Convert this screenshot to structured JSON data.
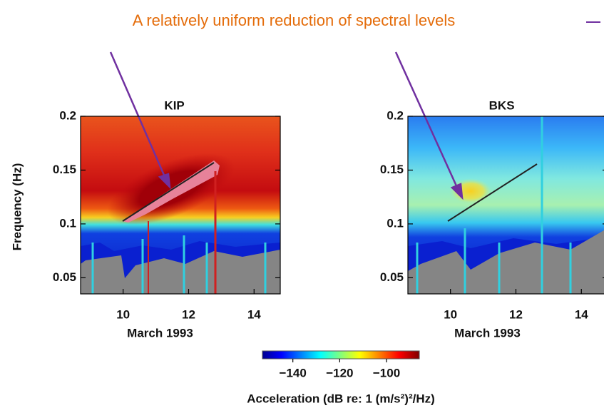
{
  "annotation": "A relatively uniform reduction of spectral levels",
  "ylabel": "Frequency  (Hz)",
  "yticks": [
    0.2,
    0.15,
    0.1,
    0.05
  ],
  "ylim": [
    0.035,
    0.2
  ],
  "xlim": [
    8.7,
    14.8
  ],
  "xticks": [
    10,
    12,
    14
  ],
  "panels": [
    {
      "title": "KIP",
      "xlabel": "March  1993"
    },
    {
      "title": "BKS",
      "xlabel": "March  1993"
    }
  ],
  "colorbar": {
    "label": "Acceleration  (dB re: 1 (m/s²)²/Hz)",
    "clim": [
      -153,
      -86
    ],
    "ticks": [
      {
        "value": -140,
        "label": "−140"
      },
      {
        "value": -120,
        "label": "−120"
      },
      {
        "value": -100,
        "label": "−100"
      }
    ]
  }
}
